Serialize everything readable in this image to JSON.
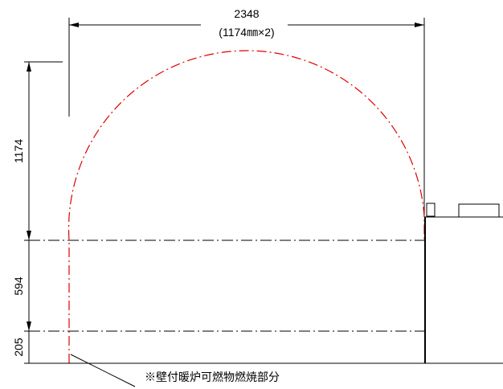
{
  "dimensions": {
    "top_total": "2348",
    "top_breakdown": "(1174㎜×2)",
    "left_arc": "1174",
    "left_mid": "594",
    "left_low": "205"
  },
  "note": "※壁付暖炉可燃物燃焼部分"
}
